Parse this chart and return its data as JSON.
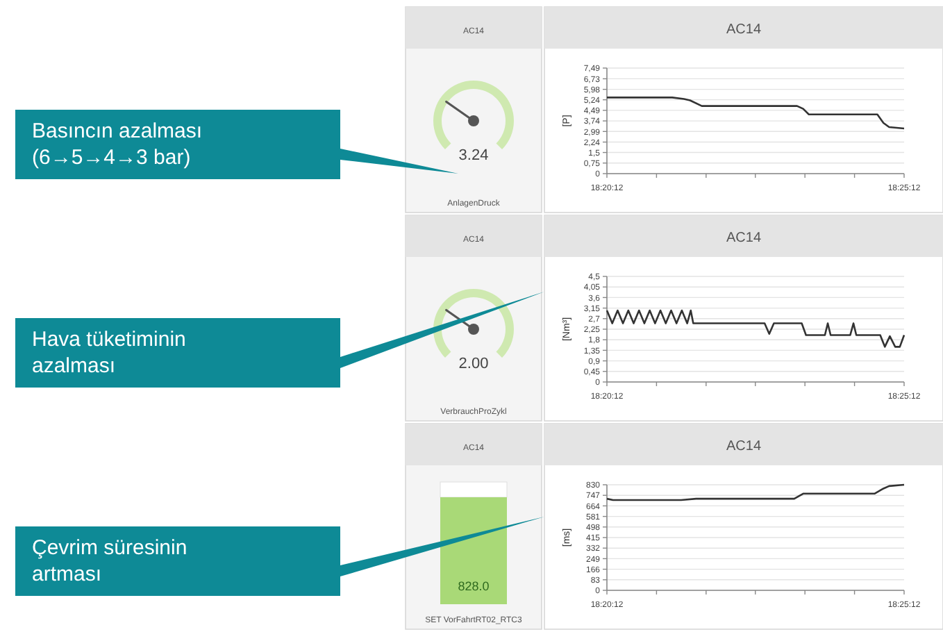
{
  "chart_data": [
    {
      "type": "other",
      "title": "AC14",
      "subtitle": "AnlagenDruck",
      "values": [
        3.24
      ],
      "value_labels": [
        "3.24"
      ],
      "annotations": [
        "Basıncın azalması (6→5→4→3 bar)"
      ]
    },
    {
      "type": "line",
      "title": "AC14",
      "ylabel": "[P]",
      "color": "#333333",
      "grid": "y",
      "xlim": [
        18.3367,
        18.42
      ],
      "xticks": [
        {
          "value": 18.3367,
          "label": "18:20:12"
        },
        {
          "value": 18.3506,
          "label": null
        },
        {
          "value": 18.3645,
          "label": null
        },
        {
          "value": 18.3783,
          "label": null
        },
        {
          "value": 18.3922,
          "label": null
        },
        {
          "value": 18.4061,
          "label": null
        },
        {
          "value": 18.42,
          "label": "18:25:12"
        }
      ],
      "ylim": [
        0,
        7.49
      ],
      "yticks": [
        0,
        {
          "value": 0.75,
          "label": "0,75"
        },
        {
          "value": 1.5,
          "label": "1,5"
        },
        {
          "value": 2.24,
          "label": "2,24"
        },
        {
          "value": 2.99,
          "label": "2,99"
        },
        {
          "value": 3.74,
          "label": "3,74"
        },
        {
          "value": 4.49,
          "label": "4,49"
        },
        {
          "value": 5.24,
          "label": "5,24"
        },
        {
          "value": 5.98,
          "label": "5,98"
        },
        {
          "value": 6.73,
          "label": "6,73"
        },
        {
          "value": 7.49,
          "label": "7,49"
        }
      ],
      "x": [
        18.3367,
        18.355,
        18.3583,
        18.36,
        18.3633,
        18.39,
        18.3917,
        18.3933,
        18.4125,
        18.4142,
        18.4158,
        18.42
      ],
      "values": [
        5.4,
        5.4,
        5.3,
        5.2,
        4.8,
        4.8,
        4.6,
        4.2,
        4.2,
        3.6,
        3.3,
        3.2
      ]
    },
    {
      "type": "other",
      "title": "AC14",
      "subtitle": "VerbrauchProZykl",
      "values": [
        2.0
      ],
      "value_labels": [
        "2.00"
      ],
      "annotations": [
        "Hava tüketiminin azalması"
      ]
    },
    {
      "type": "line",
      "title": "AC14",
      "ylabel": "[Nm³]",
      "color": "#333333",
      "grid": "y",
      "xlim": [
        18.3367,
        18.42
      ],
      "xticks": [
        {
          "value": 18.3367,
          "label": "18:20:12"
        },
        {
          "value": 18.3506,
          "label": null
        },
        {
          "value": 18.3645,
          "label": null
        },
        {
          "value": 18.3783,
          "label": null
        },
        {
          "value": 18.3922,
          "label": null
        },
        {
          "value": 18.4061,
          "label": null
        },
        {
          "value": 18.42,
          "label": "18:25:12"
        }
      ],
      "ylim": [
        0,
        4.5
      ],
      "yticks": [
        0,
        {
          "value": 0.45,
          "label": "0,45"
        },
        {
          "value": 0.9,
          "label": "0,9"
        },
        {
          "value": 1.35,
          "label": "1,35"
        },
        {
          "value": 1.8,
          "label": "1,8"
        },
        {
          "value": 2.25,
          "label": "2,25"
        },
        {
          "value": 2.7,
          "label": "2,7"
        },
        {
          "value": 3.15,
          "label": "3,15"
        },
        {
          "value": 3.6,
          "label": "3,6"
        },
        {
          "value": 4.05,
          "label": "4,05"
        },
        {
          "value": 4.5,
          "label": "4,5"
        }
      ],
      "x": [
        18.3367,
        18.3382,
        18.3397,
        18.3412,
        18.3427,
        18.3442,
        18.3457,
        18.3472,
        18.3487,
        18.3502,
        18.3517,
        18.3532,
        18.3547,
        18.3562,
        18.3577,
        18.3592,
        18.3602,
        18.3609,
        18.3809,
        18.3822,
        18.3835,
        18.3913,
        18.3925,
        18.3978,
        18.3986,
        18.3994,
        18.4049,
        18.4058,
        18.4066,
        18.4133,
        18.4146,
        18.416,
        18.4175,
        18.4188,
        18.42
      ],
      "values": [
        3.05,
        2.5,
        3.05,
        2.5,
        3.05,
        2.5,
        3.05,
        2.5,
        3.05,
        2.5,
        3.05,
        2.5,
        3.05,
        2.5,
        3.05,
        2.5,
        3.05,
        2.5,
        2.5,
        2.05,
        2.5,
        2.5,
        2.0,
        2.0,
        2.5,
        2.0,
        2.0,
        2.5,
        2.0,
        2.0,
        1.5,
        1.95,
        1.5,
        1.5,
        2.0
      ]
    },
    {
      "type": "other",
      "title": "AC14",
      "subtitle": "SET VorFahrtRT02_RTC3",
      "values": [
        828.0
      ],
      "value_labels": [
        "828.0"
      ],
      "color": "#a9d977",
      "annotations": [
        "Çevrim süresinin artması"
      ]
    },
    {
      "type": "line",
      "title": "AC14",
      "ylabel": "[ms]",
      "color": "#333333",
      "grid": "y",
      "xlim": [
        18.3367,
        18.42
      ],
      "xticks": [
        {
          "value": 18.3367,
          "label": "18:20:12"
        },
        {
          "value": 18.3506,
          "label": null
        },
        {
          "value": 18.3645,
          "label": null
        },
        {
          "value": 18.3783,
          "label": null
        },
        {
          "value": 18.3922,
          "label": null
        },
        {
          "value": 18.4061,
          "label": null
        },
        {
          "value": 18.42,
          "label": "18:25:12"
        }
      ],
      "ylim": [
        0,
        830
      ],
      "yticks": [
        0,
        83,
        166,
        249,
        332,
        415,
        498,
        581,
        664,
        747,
        830
      ],
      "x": [
        18.3367,
        18.3384,
        18.345,
        18.3534,
        18.3575,
        18.3617,
        18.3892,
        18.3917,
        18.4117,
        18.4142,
        18.4158,
        18.42
      ],
      "values": [
        720,
        710,
        710,
        710,
        710,
        720,
        720,
        760,
        760,
        800,
        820,
        830
      ]
    }
  ]
}
